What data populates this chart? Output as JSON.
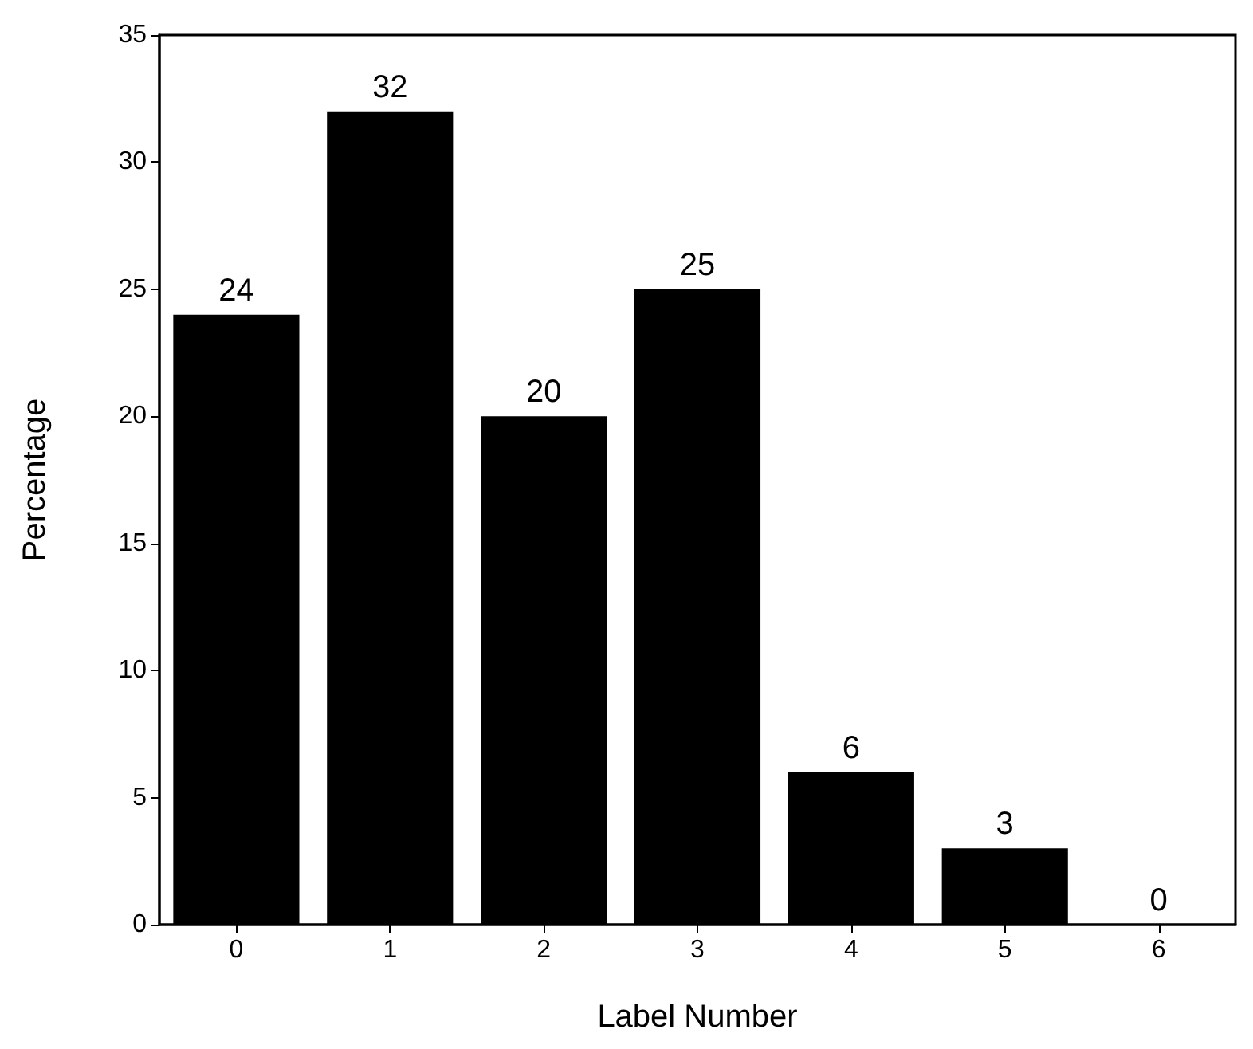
{
  "chart_data": {
    "type": "bar",
    "xlabel": "Label Number",
    "ylabel": "Percentage",
    "categories": [
      "0",
      "1",
      "2",
      "3",
      "4",
      "5",
      "6"
    ],
    "values": [
      24,
      32,
      20,
      25,
      6,
      3,
      0
    ],
    "color": "#000000",
    "data_labels": true,
    "ylim": [
      0,
      35
    ],
    "yticks": [
      0,
      5,
      10,
      15,
      20,
      25,
      30,
      35
    ]
  }
}
